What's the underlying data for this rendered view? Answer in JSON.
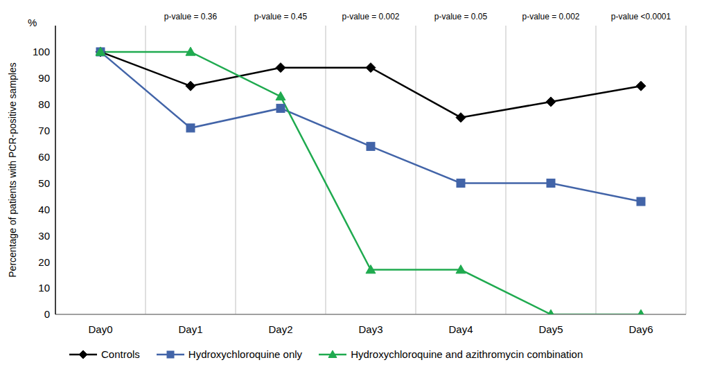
{
  "chart_data": {
    "type": "line",
    "y_label": "Percentage of patients with PCR-positive samples",
    "y_unit": "%",
    "categories": [
      "Day0",
      "Day1",
      "Day2",
      "Day3",
      "Day4",
      "Day5",
      "Day6"
    ],
    "series": [
      {
        "name": "Controls",
        "color": "#000000",
        "marker": "diamond",
        "values": [
          100,
          87,
          94,
          94,
          75,
          81,
          87
        ]
      },
      {
        "name": "Hydroxychloroquine only",
        "color": "#4264a8",
        "marker": "square",
        "values": [
          100,
          71,
          78.5,
          64,
          50,
          50,
          43
        ]
      },
      {
        "name": "Hydroxychloroquine and azithromycin combination",
        "color": "#1faa4f",
        "marker": "triangle",
        "values": [
          100,
          100,
          83,
          17,
          17,
          0,
          0
        ]
      }
    ],
    "ylim": [
      0,
      110
    ],
    "yticks": [
      0,
      10,
      20,
      30,
      40,
      50,
      60,
      70,
      80,
      90,
      100
    ],
    "grid": true,
    "legend": "bottom",
    "annotations": [
      {
        "category": "Day1",
        "text": "p-value = 0.36"
      },
      {
        "category": "Day2",
        "text": "p-value = 0.45"
      },
      {
        "category": "Day3",
        "text": "p-value = 0.002"
      },
      {
        "category": "Day4",
        "text": "p-value = 0.05"
      },
      {
        "category": "Day5",
        "text": "p-value = 0.002"
      },
      {
        "category": "Day6",
        "text": "p-value <0.0001"
      }
    ]
  }
}
